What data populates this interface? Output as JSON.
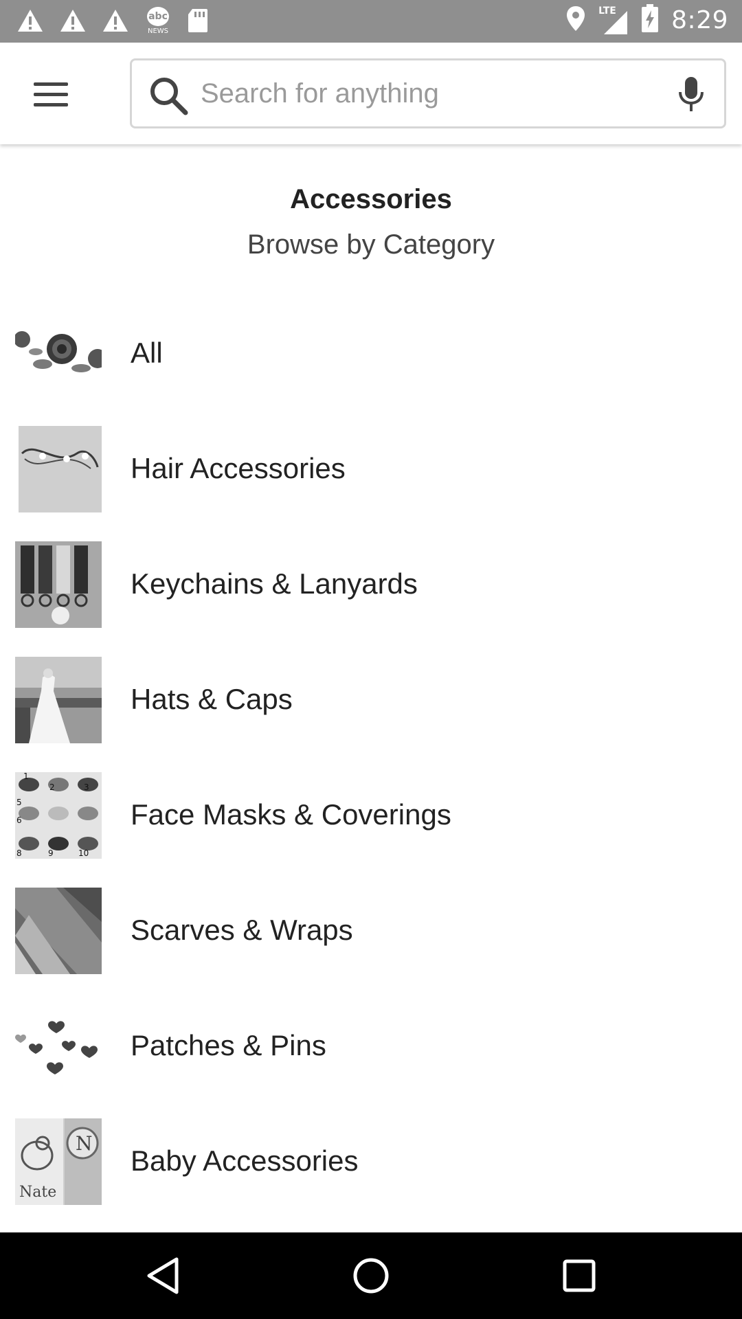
{
  "status_bar": {
    "time": "8:29",
    "news_icon_text": "abc",
    "news_icon_subtext": "NEWS",
    "network_label": "LTE",
    "left_icons": [
      "warning-icon",
      "warning-icon",
      "warning-icon",
      "news-icon",
      "sd-card-icon"
    ],
    "right_icons": [
      "location-icon",
      "signal-icon",
      "battery-charging-icon"
    ]
  },
  "app_bar": {
    "menu_icon": "hamburger-menu-icon",
    "search": {
      "placeholder": "Search for anything",
      "value": ""
    },
    "mic_icon": "microphone-icon"
  },
  "header": {
    "title": "Accessories",
    "subtitle": "Browse by Category"
  },
  "categories": [
    {
      "label": "All",
      "thumbnail": "roses"
    },
    {
      "label": "Hair Accessories",
      "thumbnail": "hair-vine"
    },
    {
      "label": "Keychains & Lanyards",
      "thumbnail": "keychains"
    },
    {
      "label": "Hats & Caps",
      "thumbnail": "bride"
    },
    {
      "label": "Face Masks & Coverings",
      "thumbnail": "masks-grid"
    },
    {
      "label": "Scarves & Wraps",
      "thumbnail": "scarf"
    },
    {
      "label": "Patches & Pins",
      "thumbnail": "hearts"
    },
    {
      "label": "Baby Accessories",
      "thumbnail": "bibs"
    }
  ],
  "mask_numbers": [
    "1",
    "2",
    "3",
    "5",
    "6",
    "8",
    "9",
    "10"
  ],
  "bib_letter": "N",
  "bib_name": "Nate",
  "nav_bar": {
    "buttons": [
      "back-icon",
      "home-icon",
      "recents-icon"
    ]
  },
  "colors": {
    "status_bar": "#8f8f8f",
    "nav_bar": "#000000",
    "text_primary": "#222222",
    "placeholder": "#9a9a9a"
  }
}
